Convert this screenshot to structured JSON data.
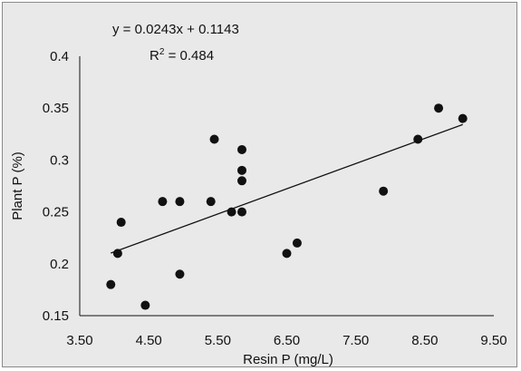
{
  "chart_data": {
    "type": "scatter",
    "title": "",
    "xlabel": "Resin P (mg/L)",
    "ylabel": "Plant P (%)",
    "xlim": [
      3.5,
      9.5
    ],
    "ylim": [
      0.15,
      0.4
    ],
    "x_ticks": [
      "3.50",
      "4.50",
      "5.50",
      "6.50",
      "7.50",
      "8.50",
      "9.50"
    ],
    "y_ticks": [
      "0.15",
      "0.2",
      "0.25",
      "0.3",
      "0.35",
      "0.4"
    ],
    "grid": false,
    "legend": "none",
    "series": [
      {
        "marker_color": "#111111",
        "points": [
          [
            3.95,
            0.18
          ],
          [
            4.05,
            0.21
          ],
          [
            4.1,
            0.24
          ],
          [
            4.45,
            0.16
          ],
          [
            4.7,
            0.26
          ],
          [
            4.95,
            0.26
          ],
          [
            4.95,
            0.19
          ],
          [
            5.4,
            0.26
          ],
          [
            5.45,
            0.32
          ],
          [
            5.7,
            0.25
          ],
          [
            5.85,
            0.31
          ],
          [
            5.85,
            0.29
          ],
          [
            5.85,
            0.28
          ],
          [
            5.85,
            0.25
          ],
          [
            6.5,
            0.21
          ],
          [
            6.65,
            0.22
          ],
          [
            7.9,
            0.27
          ],
          [
            8.4,
            0.32
          ],
          [
            8.7,
            0.35
          ],
          [
            9.05,
            0.34
          ]
        ]
      }
    ],
    "trendline": {
      "slope": 0.0243,
      "intercept": 0.1143,
      "x_range": [
        3.95,
        9.05
      ],
      "equation": "y = 0.0243x + 0.1143",
      "r_squared_label": "R",
      "r_squared_power": "2",
      "r_squared_value": " = 0.484"
    }
  }
}
